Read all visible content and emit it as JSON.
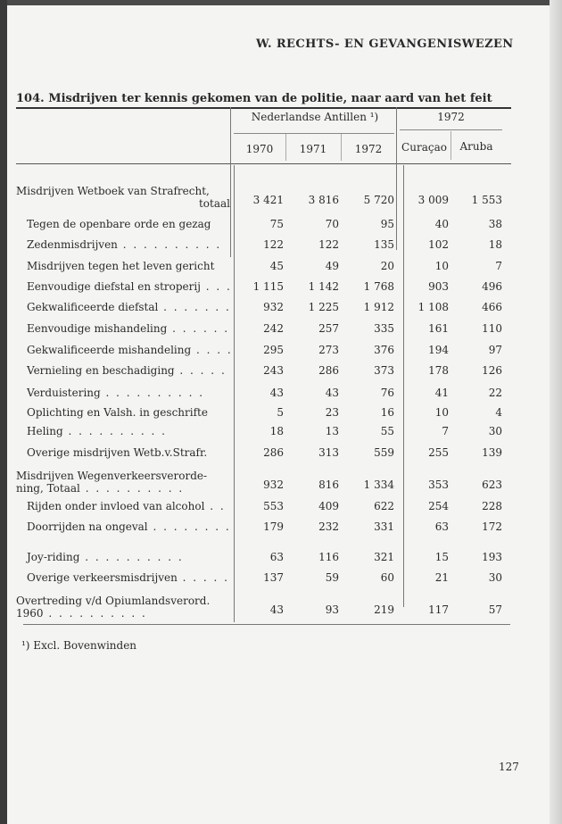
{
  "header": "W.  RECHTS- EN GEVANGENISWEZEN",
  "title": "104.  Misdrijven ter kennis gekomen van de politie, naar aard van het feit",
  "columns": {
    "group1": "Nederlandse Antillen ¹)",
    "group2": "1972",
    "sub": [
      "1970",
      "1971",
      "1972",
      "Curaçao",
      "Aruba"
    ]
  },
  "rows": [
    {
      "label": "Misdrijven  Wetboek  van  Strafrecht,",
      "label2": "totaal",
      "values": [
        "3 421",
        "3 816",
        "5 720",
        "3 009",
        "1 553"
      ]
    },
    {
      "label": "Tegen de openbare orde en gezag",
      "values": [
        "75",
        "70",
        "95",
        "40",
        "38"
      ]
    },
    {
      "label": "Zedenmisdrijven",
      "values": [
        "122",
        "122",
        "135",
        "102",
        "18"
      ]
    },
    {
      "label": "Misdrijven tegen het leven gericht",
      "values": [
        "45",
        "49",
        "20",
        "10",
        "7"
      ]
    },
    {
      "label": "Eenvoudige diefstal en stroperij",
      "values": [
        "1 115",
        "1 142",
        "1 768",
        "903",
        "496"
      ]
    },
    {
      "label": "Gekwalificeerde diefstal",
      "values": [
        "932",
        "1 225",
        "1 912",
        "1 108",
        "466"
      ]
    },
    {
      "label": "Eenvoudige mishandeling",
      "values": [
        "242",
        "257",
        "335",
        "161",
        "110"
      ]
    },
    {
      "label": "Gekwalificeerde  mishandeling",
      "values": [
        "295",
        "273",
        "376",
        "194",
        "97"
      ]
    },
    {
      "label": "Vernieling en beschadiging",
      "values": [
        "243",
        "286",
        "373",
        "178",
        "126"
      ]
    },
    {
      "label": "Verduistering",
      "values": [
        "43",
        "43",
        "76",
        "41",
        "22"
      ]
    },
    {
      "label": "Oplichting en Valsh. in geschrifte",
      "values": [
        "5",
        "23",
        "16",
        "10",
        "4"
      ]
    },
    {
      "label": "Heling",
      "values": [
        "18",
        "13",
        "55",
        "7",
        "30"
      ]
    },
    {
      "label": "Overige  misdrijven  Wetb.v.Strafr.",
      "values": [
        "286",
        "313",
        "559",
        "255",
        "139"
      ]
    },
    {
      "label": "Misdrijven  Wegenverkeersverorde-",
      "label2": "ning, Totaal",
      "values": [
        "932",
        "816",
        "1 334",
        "353",
        "623"
      ]
    },
    {
      "label": "Rijden onder invloed van alcohol",
      "values": [
        "553",
        "409",
        "622",
        "254",
        "228"
      ]
    },
    {
      "label": "Doorrijden na ongeval",
      "values": [
        "179",
        "232",
        "331",
        "63",
        "172"
      ]
    },
    {
      "label": "Joy-riding",
      "values": [
        "63",
        "116",
        "321",
        "15",
        "193"
      ]
    },
    {
      "label": "Overige  verkeersmisdrijven",
      "values": [
        "137",
        "59",
        "60",
        "21",
        "30"
      ]
    },
    {
      "label": "Overtreding  v/d  Opiumlandsverord.",
      "label2": "1960",
      "values": [
        "43",
        "93",
        "219",
        "117",
        "57"
      ]
    }
  ],
  "footnote": "¹)   Excl.  Bovenwinden",
  "page_number": "127"
}
